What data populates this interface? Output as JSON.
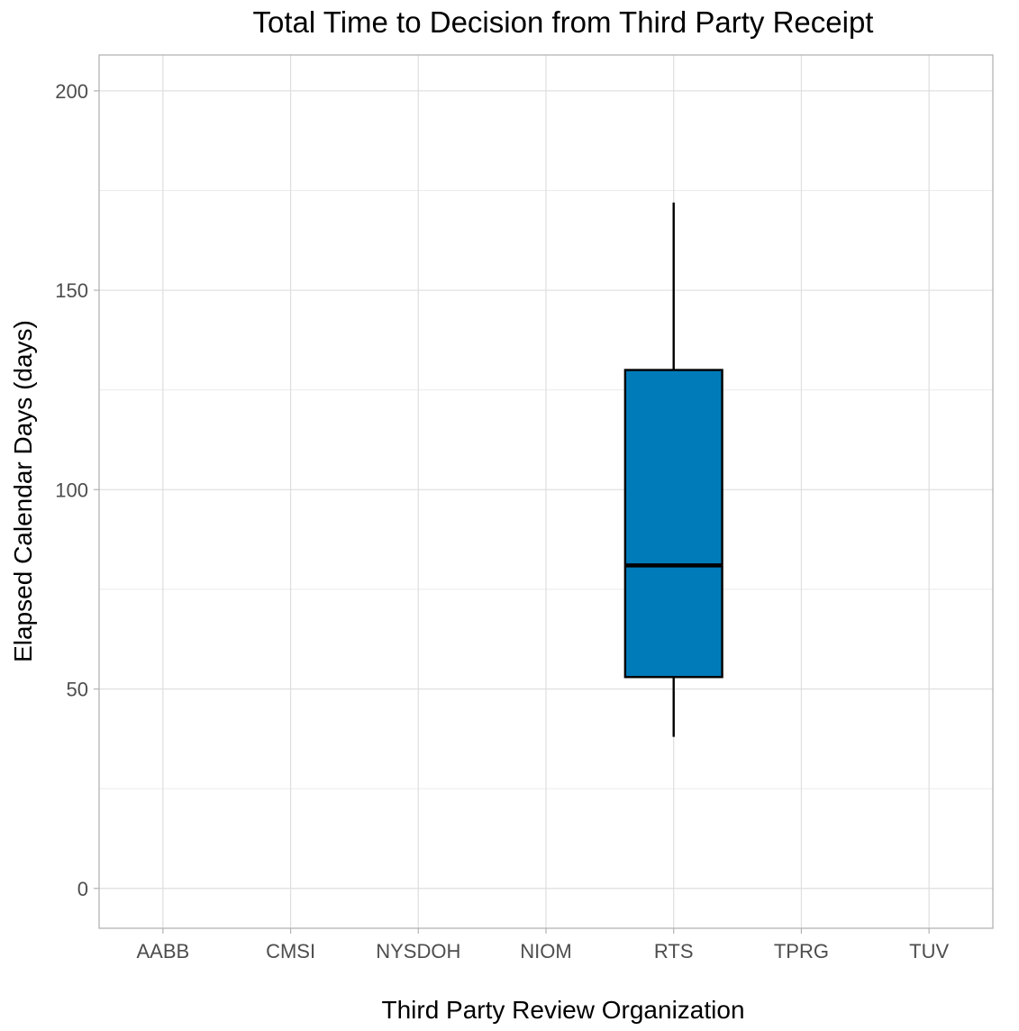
{
  "chart_data": {
    "type": "box",
    "title": "Total Time to Decision from Third Party Receipt",
    "xlabel": "Third Party Review Organization",
    "ylabel": "Elapsed Calendar Days (days)",
    "categories": [
      "AABB",
      "CMSI",
      "NYSDOH",
      "NIOM",
      "RTS",
      "TPRG",
      "TUV"
    ],
    "ylim": [
      -10,
      209
    ],
    "y_ticks": [
      0,
      50,
      100,
      150,
      200
    ],
    "y_tick_labels": [
      "0",
      "50",
      "100",
      "150",
      "200"
    ],
    "grid": true,
    "legend": "none",
    "box_color": "#007bba",
    "boxes": [
      {
        "category": "RTS",
        "min": 38,
        "q1": 53,
        "median": 81,
        "q3": 130,
        "max": 172
      }
    ]
  }
}
